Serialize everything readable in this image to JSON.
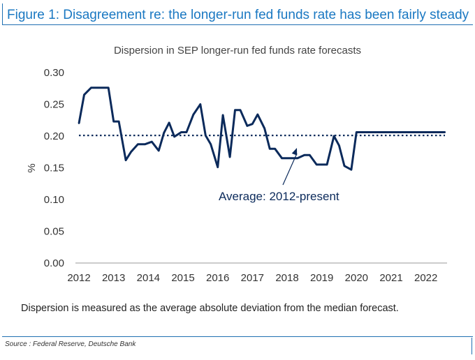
{
  "header": {
    "title": "Figure 1: Disagreement re: the longer-run fed funds rate has been fairly steady"
  },
  "note": "Dispersion is measured as the average absolute deviation from the median forecast.",
  "source": "Source : Federal Reserve, Deutsche Bank",
  "chart_data": {
    "type": "line",
    "title": "Dispersion in SEP longer-run fed funds rate forecasts",
    "xlabel": "",
    "ylabel": "%",
    "xlim": [
      2012.0,
      2022.55
    ],
    "ylim": [
      0,
      0.3
    ],
    "yticks": [
      "0.00",
      "0.05",
      "0.10",
      "0.15",
      "0.20",
      "0.25",
      "0.30"
    ],
    "xticks": [
      "2012",
      "2013",
      "2014",
      "2015",
      "2016",
      "2017",
      "2018",
      "2019",
      "2020",
      "2021",
      "2022"
    ],
    "grid": false,
    "series": [
      {
        "name": "",
        "color": "#0b2a5b",
        "x": [
          2012.0,
          2012.15,
          2012.35,
          2012.55,
          2012.7,
          2012.85,
          2013.0,
          2013.15,
          2013.35,
          2013.5,
          2013.7,
          2013.9,
          2014.1,
          2014.3,
          2014.45,
          2014.6,
          2014.75,
          2014.95,
          2015.1,
          2015.3,
          2015.5,
          2015.65,
          2015.8,
          2016.0,
          2016.15,
          2016.35,
          2016.5,
          2016.65,
          2016.85,
          2017.0,
          2017.15,
          2017.35,
          2017.5,
          2017.65,
          2017.85,
          2018.0,
          2018.15,
          2018.3,
          2018.5,
          2018.65,
          2018.85,
          2019.0,
          2019.15,
          2019.35,
          2019.5,
          2019.65,
          2019.85,
          2020.0,
          2020.15,
          2020.35,
          2020.5,
          2020.65,
          2020.85,
          2021.0,
          2021.15,
          2021.35,
          2021.5,
          2021.65,
          2021.85,
          2022.0,
          2022.2,
          2022.35,
          2022.45,
          2022.55
        ],
        "values": [
          0.22,
          0.265,
          0.276,
          0.276,
          0.276,
          0.276,
          0.223,
          0.223,
          0.162,
          0.175,
          0.187,
          0.187,
          0.191,
          0.177,
          0.205,
          0.221,
          0.199,
          0.206,
          0.206,
          0.234,
          0.25,
          0.201,
          0.187,
          0.151,
          0.233,
          0.167,
          0.241,
          0.241,
          0.216,
          0.219,
          0.234,
          0.212,
          0.18,
          0.18,
          0.165,
          0.165,
          0.165,
          0.165,
          0.17,
          0.17,
          0.155,
          0.155,
          0.155,
          0.2,
          0.185,
          0.153,
          0.147,
          0.206,
          0.206,
          0.206,
          0.206,
          0.206,
          0.206,
          0.206,
          0.206,
          0.206,
          0.206,
          0.206,
          0.206,
          0.206,
          0.206,
          0.206,
          0.206,
          0.206
        ]
      }
    ],
    "average": {
      "value": 0.201,
      "label": "Average: 2012-present",
      "style": "dotted"
    }
  }
}
